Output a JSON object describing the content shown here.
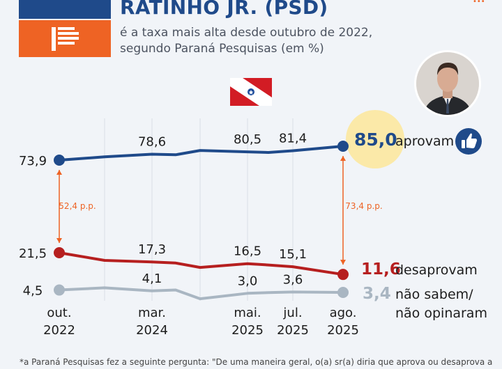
{
  "header": {
    "title": "RATINHO JR. (PSD)",
    "subtitle_line1": "é a taxa mais alta desde outubro de 2022,",
    "subtitle_line2": "segundo Paraná Pesquisas (em %)"
  },
  "colors": {
    "approve": "#1f4a8a",
    "disapprove": "#b61f1f",
    "unknown": "#a9b6c2",
    "accent": "#ee6324",
    "highlight": "#fbe9a8"
  },
  "icons": {
    "flag": "parana-flag-icon",
    "thumb": "thumbs-up-icon",
    "photo": "governor-photo"
  },
  "chart_data": {
    "type": "line",
    "x": [
      "out. 2022",
      "",
      "mar. 2024",
      "",
      "",
      "mai. 2025",
      "",
      "jul. 2025",
      "ago. 2025"
    ],
    "x_ticks": [
      {
        "line1": "out.",
        "line2": "2022",
        "index": 0
      },
      {
        "line1": "mar.",
        "line2": "2024",
        "index": 2
      },
      {
        "line1": "mai.",
        "line2": "2025",
        "index": 5
      },
      {
        "line1": "jul.",
        "line2": "2025",
        "index": 7
      },
      {
        "line1": "ago.",
        "line2": "2025",
        "index": 8
      }
    ],
    "series": [
      {
        "name": "aprovam",
        "values": [
          73.9,
          76.5,
          78.6,
          78.2,
          81.6,
          80.5,
          80.0,
          81.4,
          85.0
        ],
        "labels": [
          {
            "index": 0,
            "text": "73,9"
          },
          {
            "index": 2,
            "text": "78,6"
          },
          {
            "index": 5,
            "text": "80,5"
          },
          {
            "index": 7,
            "text": "81,4"
          }
        ]
      },
      {
        "name": "desaprovam",
        "values": [
          21.5,
          18.0,
          17.3,
          16.8,
          14.8,
          16.5,
          15.9,
          15.1,
          11.6
        ],
        "labels": [
          {
            "index": 0,
            "text": "21,5"
          },
          {
            "index": 2,
            "text": "17,3"
          },
          {
            "index": 5,
            "text": "16,5"
          },
          {
            "index": 7,
            "text": "15,1"
          }
        ]
      },
      {
        "name": "não sabem/ não opinaram",
        "values": [
          4.5,
          5.5,
          4.1,
          4.5,
          0.5,
          3.0,
          3.3,
          3.6,
          3.4
        ],
        "labels": [
          {
            "index": 0,
            "text": "4,5"
          },
          {
            "index": 2,
            "text": "4,1"
          },
          {
            "index": 5,
            "text": "3,0"
          },
          {
            "index": 7,
            "text": "3,6"
          }
        ]
      }
    ],
    "end_labels": {
      "approve_value": "85,0",
      "approve_name": "aprovam",
      "disapprove_value": "11,6",
      "disapprove_name": "desaprovam",
      "unknown_value": "3,4",
      "unknown_name_line1": "não sabem/",
      "unknown_name_line2": "não opinaram"
    },
    "gaps": [
      {
        "index": 0,
        "text": "52,4 p.p."
      },
      {
        "index": 8,
        "text": "73,4 p.p."
      }
    ],
    "ylim": [
      0,
      100
    ],
    "grid": "vertical"
  },
  "footnote": "*a Paraná Pesquisas fez a seguinte pergunta: \"De uma maneira geral, o(a) sr(a) diria que aprova ou desaprova a"
}
